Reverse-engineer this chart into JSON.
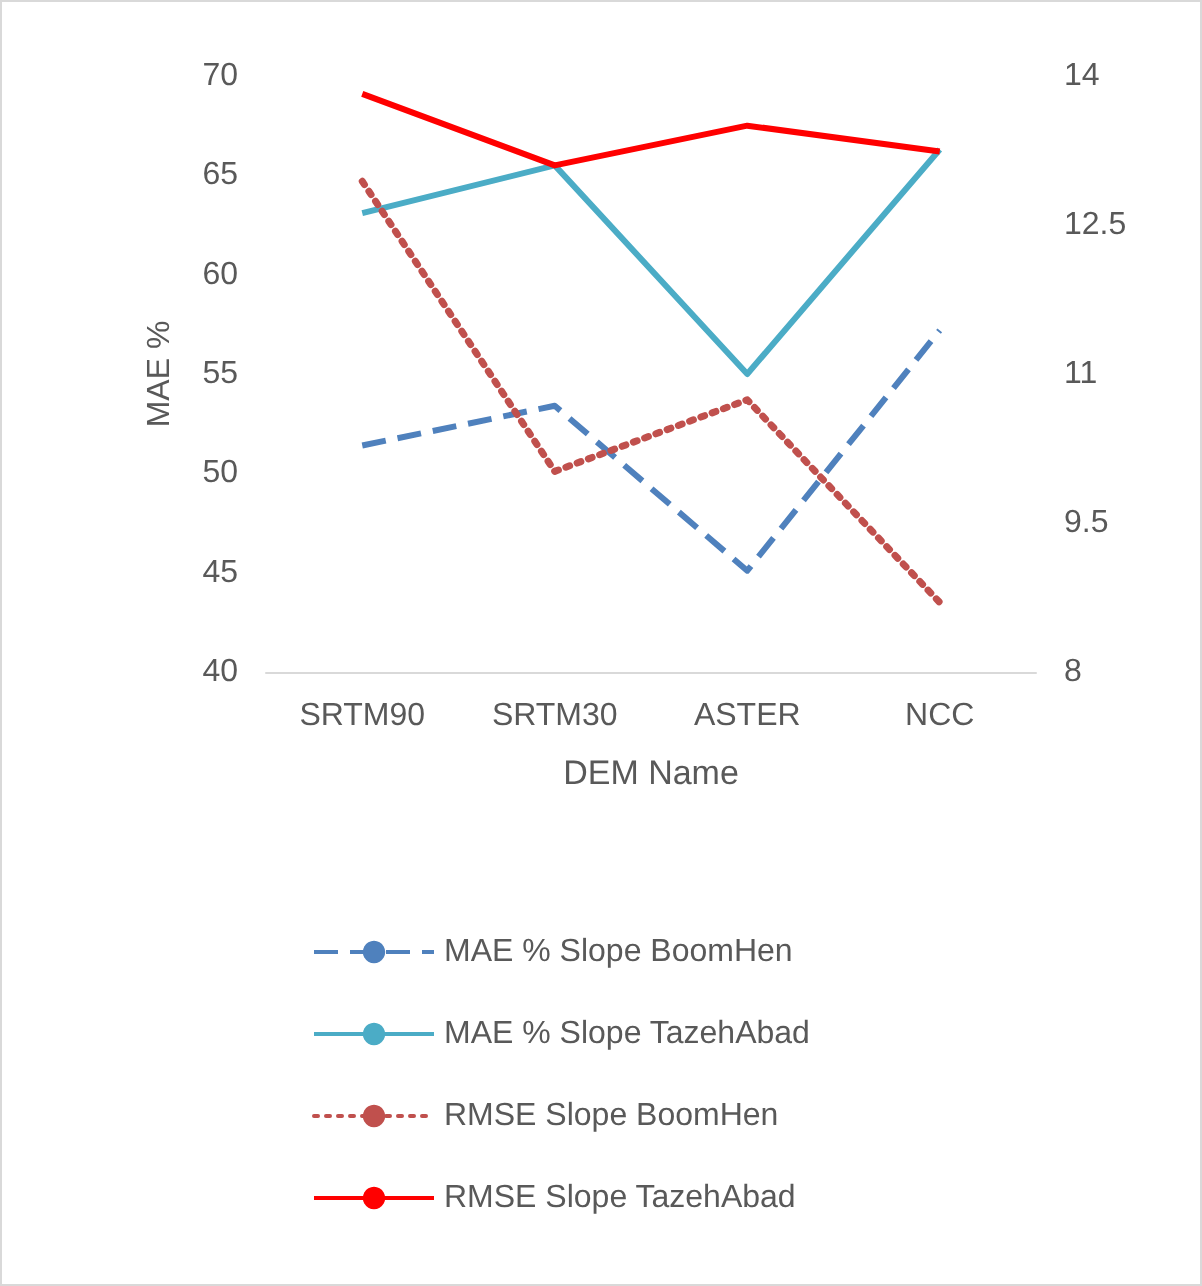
{
  "chart_data": {
    "type": "line",
    "xlabel": "DEM Name",
    "ylabel": "MAE %",
    "categories": [
      "SRTM90",
      "SRTM30",
      "ASTER",
      "NCC"
    ],
    "ylim": [
      40,
      70
    ],
    "yticks": [
      40,
      45,
      50,
      55,
      60,
      65,
      70
    ],
    "y2lim": [
      8,
      14
    ],
    "y2ticks": [
      8,
      9.5,
      11,
      12.5,
      14
    ],
    "grid": false,
    "legend": "bottom",
    "marker": "none",
    "series": [
      {
        "name": "MAE % Slope BoomHen",
        "color": "#4f81bd",
        "line_style": "dashed",
        "values": [
          51.4,
          53.4,
          45.1,
          57.2
        ]
      },
      {
        "name": "MAE % Slope TazehAbad",
        "color": "#4bacc6",
        "line_style": "solid",
        "values": [
          63.1,
          65.5,
          55,
          66.3
        ]
      },
      {
        "name": "RMSE Slope BoomHen",
        "color": "#c0504d",
        "line_style": "dotted",
        "axis": "y2",
        "values": [
          12.94,
          10.02,
          10.74,
          8.7
        ]
      },
      {
        "name": "RMSE Slope TazehAbad",
        "color": "#ff0000",
        "line_style": "solid",
        "axis": "y2",
        "values": [
          13.82,
          13.1,
          13.5,
          13.24
        ]
      }
    ]
  }
}
